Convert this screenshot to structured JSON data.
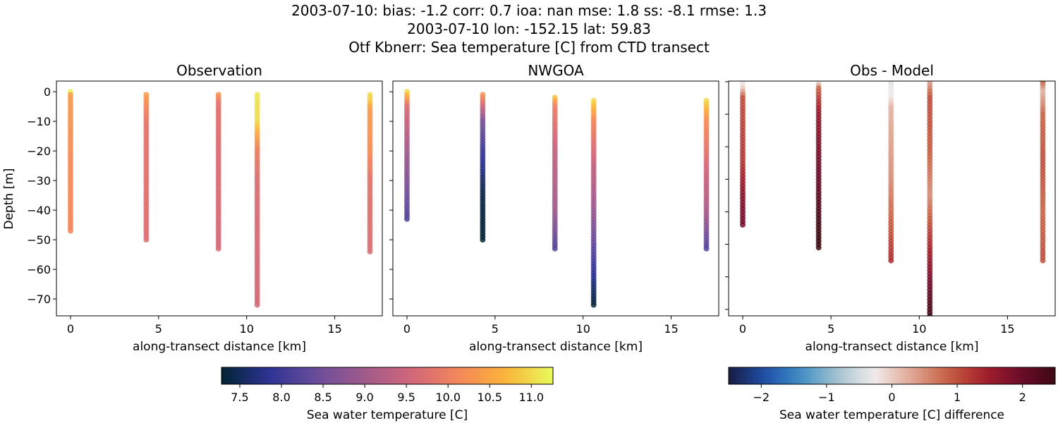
{
  "header": {
    "line1": "2003-07-10: bias: -1.2  corr: 0.7  ioa: nan  mse: 1.8  ss: -8.1  rmse: 1.3",
    "line2": "2003-07-10 lon: -152.15 lat: 59.83",
    "line3": "Otf Kbnerr: Sea temperature [C] from CTD transect"
  },
  "chart_data": [
    {
      "type": "scatter",
      "title": "Observation",
      "xlabel": "along-transect distance [km]",
      "ylabel": "Depth [m]",
      "xlim": [
        -0.8,
        17.7
      ],
      "ylim": [
        -75.7,
        3.6
      ],
      "xticks": [
        0,
        5,
        10,
        15
      ],
      "yticks": [
        0,
        -10,
        -20,
        -30,
        -40,
        -50,
        -60,
        -70
      ],
      "colormap": "thermal",
      "clim": [
        7.28,
        11.26
      ],
      "profiles": [
        {
          "x": 0.0,
          "depth": [
            0,
            -1,
            -20,
            -47
          ],
          "value": [
            11.2,
            10.4,
            10.2,
            10.1
          ]
        },
        {
          "x": 4.3,
          "depth": [
            -1,
            -5,
            -12,
            -50
          ],
          "value": [
            10.4,
            10.1,
            9.8,
            9.7
          ]
        },
        {
          "x": 8.4,
          "depth": [
            -1,
            -4,
            -15,
            -53
          ],
          "value": [
            10.3,
            9.8,
            9.7,
            9.6
          ]
        },
        {
          "x": 10.6,
          "depth": [
            -1,
            -10,
            -20,
            -30,
            -72
          ],
          "value": [
            11.1,
            11.0,
            10.0,
            9.7,
            9.6
          ]
        },
        {
          "x": 17.0,
          "depth": [
            -1,
            -3,
            -6,
            -20,
            -30,
            -54
          ],
          "value": [
            11.0,
            10.9,
            10.4,
            10.2,
            9.8,
            9.7
          ]
        }
      ]
    },
    {
      "type": "scatter",
      "title": "NWGOA",
      "xlabel": "along-transect distance [km]",
      "xlim": [
        -0.8,
        17.7
      ],
      "ylim": [
        -75.7,
        3.6
      ],
      "xticks": [
        0,
        5,
        10,
        15
      ],
      "yticks": [
        0,
        -10,
        -20,
        -30,
        -40,
        -50,
        -60,
        -70
      ],
      "colormap": "thermal",
      "clim": [
        7.28,
        11.26
      ],
      "profiles": [
        {
          "x": 0.0,
          "depth": [
            0,
            -5,
            -20,
            -43
          ],
          "value": [
            11.0,
            9.7,
            9.0,
            8.2
          ]
        },
        {
          "x": 4.3,
          "depth": [
            -1,
            -10,
            -20,
            -35,
            -50
          ],
          "value": [
            10.3,
            8.6,
            8.0,
            7.4,
            7.3
          ]
        },
        {
          "x": 8.4,
          "depth": [
            -2,
            -5,
            -20,
            -40,
            -53
          ],
          "value": [
            10.8,
            10.0,
            9.4,
            9.0,
            8.2
          ]
        },
        {
          "x": 10.6,
          "depth": [
            -3,
            -10,
            -25,
            -40,
            -55,
            -72
          ],
          "value": [
            11.0,
            10.1,
            9.4,
            8.9,
            8.2,
            7.3
          ]
        },
        {
          "x": 17.0,
          "depth": [
            -3,
            -10,
            -25,
            -40,
            -53
          ],
          "value": [
            11.0,
            10.2,
            9.6,
            9.1,
            8.2
          ]
        }
      ]
    },
    {
      "type": "scatter",
      "title": "Obs - Model",
      "xlabel": "along-transect distance [km]",
      "xlim": [
        -0.8,
        17.7
      ],
      "ylim": [
        -72,
        0.2
      ],
      "xticks": [
        0,
        5,
        10,
        15
      ],
      "yticks": [
        0,
        -10,
        -20,
        -30,
        -40,
        -50,
        -60,
        -70
      ],
      "colormap": "balance",
      "clim": [
        -2.5,
        2.5
      ],
      "profiles": [
        {
          "x": 0.0,
          "depth": [
            0,
            -2,
            -5,
            -25,
            -35,
            -44
          ],
          "value": [
            -0.4,
            0.0,
            1.0,
            1.2,
            1.7,
            1.9
          ]
        },
        {
          "x": 4.3,
          "depth": [
            0,
            -2,
            -10,
            -30,
            -51
          ],
          "value": [
            -0.3,
            0.8,
            1.6,
            2.0,
            2.6
          ]
        },
        {
          "x": 8.4,
          "depth": [
            1,
            -5,
            -8,
            -30,
            -45,
            -55
          ],
          "value": [
            -0.5,
            -0.2,
            0.2,
            0.5,
            0.9,
            1.3
          ]
        },
        {
          "x": 10.6,
          "depth": [
            0,
            -5,
            -20,
            -35,
            -50,
            -62,
            -75
          ],
          "value": [
            0.3,
            1.0,
            0.9,
            0.5,
            1.3,
            1.9,
            2.6
          ]
        },
        {
          "x": 17.0,
          "depth": [
            0,
            -3,
            -10,
            -25,
            -40,
            -55
          ],
          "value": [
            0.9,
            0.2,
            0.8,
            1.0,
            0.8,
            1.0
          ]
        }
      ]
    }
  ],
  "colorbars": [
    {
      "label": "Sea water temperature [C]",
      "ticks": [
        "7.5",
        "8.0",
        "8.5",
        "9.0",
        "9.5",
        "10.0",
        "10.5",
        "11.0"
      ],
      "range": [
        7.28,
        11.26
      ]
    },
    {
      "label": "Sea water temperature [C] difference",
      "ticks": [
        "−2",
        "−1",
        "0",
        "1",
        "2"
      ],
      "range": [
        -2.5,
        2.5
      ]
    }
  ],
  "colormaps": {
    "thermal": [
      "#032333",
      "#2c3395",
      "#6a4d9a",
      "#a05a8c",
      "#d0667a",
      "#f4865a",
      "#fbb33a",
      "#e8fa5b"
    ],
    "balance": [
      "#181c43",
      "#1f4fa8",
      "#3f8fc6",
      "#a4c3cf",
      "#f1ecec",
      "#e0aa98",
      "#c86345",
      "#a6212c",
      "#6f0c2b",
      "#3c0911"
    ]
  }
}
